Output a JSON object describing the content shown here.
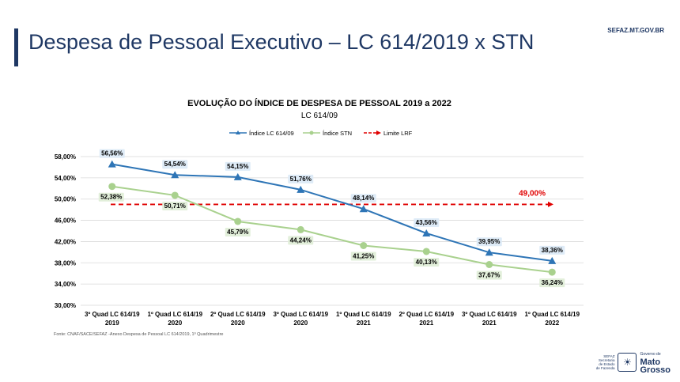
{
  "slide": {
    "title": "Despesa de Pessoal Executivo – LC 614/2019 x STN",
    "site_url": "SEFAZ.MT.GOV.BR",
    "source_note": "Fonte: CNAF/SACE/SEFAZ -Anexo Despesa de Pessoal LC 614/2019, 1º Quadrimestre",
    "logo": {
      "sefaz_lines": [
        "SEFAZ",
        "Secretaria",
        "de Estado",
        "de Fazenda"
      ],
      "state_pre": "Governo de",
      "state_line1": "Mato",
      "state_line2": "Grosso"
    }
  },
  "colors": {
    "title": "#1f3864",
    "lc_series": "#2e75b6",
    "stn_series": "#a9d18e",
    "limit": "#e00000"
  },
  "chart_data": {
    "type": "line",
    "title": "EVOLUÇÃO DO ÍNDICE DE DESPESA DE PESSOAL 2019 a 2022",
    "subtitle": "LC 614/09",
    "categories": [
      [
        "3º Quad LC 614/19",
        "2019"
      ],
      [
        "1º Quad LC 614/19",
        "2020"
      ],
      [
        "2º Quad LC 614/19",
        "2020"
      ],
      [
        "3º Quad LC 614/19",
        "2020"
      ],
      [
        "1º Quad LC 614/19",
        "2021"
      ],
      [
        "2º Quad LC 614/19",
        "2021"
      ],
      [
        "3º Quad LC 614/19",
        "2021"
      ],
      [
        "1º Quad LC 614/19",
        "2022"
      ]
    ],
    "ylim": [
      30,
      58
    ],
    "yticks": [
      "30,00%",
      "34,00%",
      "38,00%",
      "42,00%",
      "46,00%",
      "50,00%",
      "54,00%",
      "58,00%"
    ],
    "ytick_values": [
      30,
      34,
      38,
      42,
      46,
      50,
      54,
      58
    ],
    "legend_position": "top",
    "series": [
      {
        "name": "Índice LC 614/09",
        "marker": "triangle",
        "values": [
          56.56,
          54.54,
          54.15,
          51.76,
          48.14,
          43.56,
          39.95,
          38.36
        ],
        "labels": [
          "56,56%",
          "54,54%",
          "54,15%",
          "51,76%",
          "48,14%",
          "43,56%",
          "39,95%",
          "38,36%"
        ]
      },
      {
        "name": "Índice STN",
        "marker": "circle",
        "values": [
          52.38,
          50.71,
          45.79,
          44.24,
          41.25,
          40.13,
          37.67,
          36.24
        ],
        "labels": [
          "52,38%",
          "50,71%",
          "45,79%",
          "44,24%",
          "41,25%",
          "40,13%",
          "37,67%",
          "36,24%"
        ]
      },
      {
        "name": "Limite LRF",
        "style": "dashed",
        "values": [
          49,
          49,
          49,
          49,
          49,
          49,
          49,
          49
        ],
        "label": "49,00%"
      }
    ],
    "grid": true
  }
}
